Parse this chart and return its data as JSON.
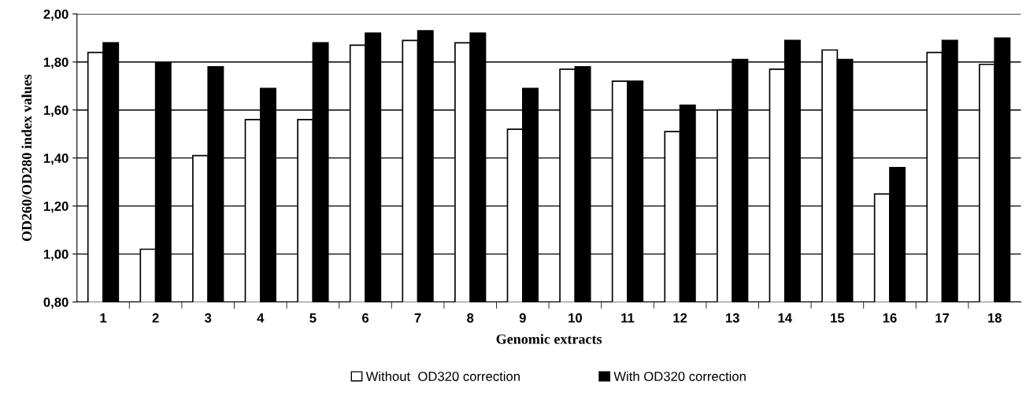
{
  "chart_data": {
    "type": "bar",
    "xlabel": "Genomic extracts",
    "ylabel": "OD260/OD280 index values",
    "categories": [
      "1",
      "2",
      "3",
      "4",
      "5",
      "6",
      "7",
      "8",
      "9",
      "10",
      "11",
      "12",
      "13",
      "14",
      "15",
      "16",
      "17",
      "18"
    ],
    "series": [
      {
        "name": "Without  OD320 correction",
        "color": "#ffffff",
        "values": [
          1.84,
          1.02,
          1.41,
          1.56,
          1.56,
          1.87,
          1.89,
          1.88,
          1.52,
          1.77,
          1.72,
          1.51,
          1.6,
          1.77,
          1.85,
          1.25,
          1.84,
          1.79
        ]
      },
      {
        "name": "With OD320 correction",
        "color": "#000000",
        "values": [
          1.88,
          1.8,
          1.78,
          1.69,
          1.88,
          1.92,
          1.93,
          1.92,
          1.69,
          1.78,
          1.72,
          1.62,
          1.81,
          1.89,
          1.81,
          1.36,
          1.89,
          1.9
        ]
      }
    ],
    "ylim": [
      0.8,
      2.0
    ],
    "yticks": [
      {
        "value": 0.8,
        "label": "0,80"
      },
      {
        "value": 1.0,
        "label": "1,00"
      },
      {
        "value": 1.2,
        "label": "1,20"
      },
      {
        "value": 1.4,
        "label": "1,40"
      },
      {
        "value": 1.6,
        "label": "1,60"
      },
      {
        "value": 1.8,
        "label": "1,80"
      },
      {
        "value": 2.0,
        "label": "2,00"
      }
    ],
    "grid": "y",
    "legend": "bottom"
  }
}
